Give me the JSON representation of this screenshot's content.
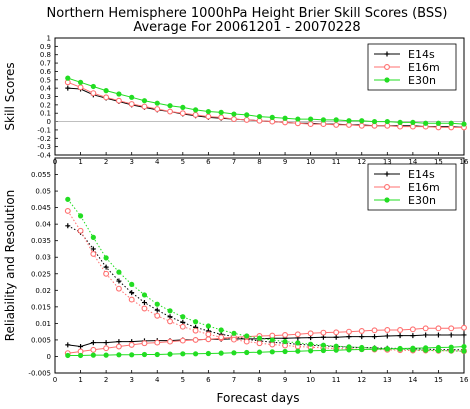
{
  "title_line1": "Northern Hemisphere 1000hPa Height Brier Skill Scores (BSS)",
  "title_line2": "Average For 20061201 - 20070228",
  "xlabel": "Forecast days",
  "colors": {
    "E14s": "#000000",
    "E16m": "#ff6f6f",
    "E30n": "#22dd22"
  },
  "chart_data": [
    {
      "type": "line",
      "ylabel": "Skill Scores",
      "ylim": [
        -0.4,
        1.0
      ],
      "yticks": [
        "-0.4",
        "-0.3",
        "-0.2",
        "-0.1",
        "0",
        "0.1",
        "0.2",
        "0.3",
        "0.4",
        "0.5",
        "0.6",
        "0.7",
        "0.8",
        "0.9",
        "1"
      ],
      "ytick_values": [
        -0.4,
        -0.3,
        -0.2,
        -0.1,
        0,
        0.1,
        0.2,
        0.3,
        0.4,
        0.5,
        0.6,
        0.7,
        0.8,
        0.9,
        1.0
      ],
      "xlim": [
        0,
        16
      ],
      "xticks": [
        "0",
        "1",
        "2",
        "3",
        "4",
        "5",
        "6",
        "7",
        "8",
        "9",
        "10",
        "11",
        "12",
        "13",
        "14",
        "15",
        "16"
      ],
      "xtick_values": [
        0,
        1,
        2,
        3,
        4,
        5,
        6,
        7,
        8,
        9,
        10,
        11,
        12,
        13,
        14,
        15,
        16
      ],
      "legend": "top-right",
      "x": [
        0.5,
        1,
        1.5,
        2,
        2.5,
        3,
        3.5,
        4,
        4.5,
        5,
        5.5,
        6,
        6.5,
        7,
        7.5,
        8,
        8.5,
        9,
        9.5,
        10,
        10.5,
        11,
        11.5,
        12,
        12.5,
        13,
        13.5,
        14,
        14.5,
        15,
        15.5,
        16
      ],
      "series": [
        {
          "name": "E14s",
          "marker": "plus",
          "dash": "solid",
          "values": [
            0.4,
            0.39,
            0.32,
            0.28,
            0.24,
            0.2,
            0.17,
            0.14,
            0.12,
            0.09,
            0.07,
            0.05,
            0.04,
            0.03,
            0.02,
            0.01,
            0.0,
            -0.01,
            -0.02,
            -0.02,
            -0.03,
            -0.03,
            -0.04,
            -0.04,
            -0.05,
            -0.05,
            -0.05,
            -0.05,
            -0.06,
            -0.06,
            -0.06,
            -0.07
          ]
        },
        {
          "name": "E16m",
          "marker": "circle",
          "dash": "solid",
          "values": [
            0.47,
            0.41,
            0.34,
            0.29,
            0.25,
            0.21,
            0.18,
            0.15,
            0.12,
            0.1,
            0.08,
            0.06,
            0.05,
            0.03,
            0.02,
            0.01,
            0.0,
            -0.01,
            -0.02,
            -0.03,
            -0.03,
            -0.04,
            -0.04,
            -0.05,
            -0.05,
            -0.05,
            -0.06,
            -0.06,
            -0.06,
            -0.07,
            -0.07,
            -0.07
          ]
        },
        {
          "name": "E30n",
          "marker": "dot",
          "dash": "solid",
          "values": [
            0.52,
            0.47,
            0.42,
            0.37,
            0.33,
            0.29,
            0.25,
            0.22,
            0.19,
            0.17,
            0.14,
            0.12,
            0.11,
            0.09,
            0.08,
            0.06,
            0.05,
            0.04,
            0.03,
            0.03,
            0.02,
            0.02,
            0.01,
            0.01,
            0.0,
            0.0,
            -0.01,
            -0.01,
            -0.02,
            -0.02,
            -0.02,
            -0.03
          ]
        }
      ]
    },
    {
      "type": "line",
      "ylabel": "Reliability and Resolution",
      "ylim": [
        -0.005,
        0.06
      ],
      "yticks": [
        "-0.005",
        "0",
        "0.005",
        "0.01",
        "0.015",
        "0.02",
        "0.025",
        "0.03",
        "0.035",
        "0.04",
        "0.045",
        "0.05",
        "0.055"
      ],
      "ytick_values": [
        -0.005,
        0,
        0.005,
        0.01,
        0.015,
        0.02,
        0.025,
        0.03,
        0.035,
        0.04,
        0.045,
        0.05,
        0.055
      ],
      "xlim": [
        0,
        16
      ],
      "xticks": [
        "0",
        "1",
        "2",
        "3",
        "4",
        "5",
        "6",
        "7",
        "8",
        "9",
        "10",
        "11",
        "12",
        "13",
        "14",
        "15",
        "16"
      ],
      "xtick_values": [
        0,
        1,
        2,
        3,
        4,
        5,
        6,
        7,
        8,
        9,
        10,
        11,
        12,
        13,
        14,
        15,
        16
      ],
      "legend": "top-right",
      "x": [
        0.5,
        1,
        1.5,
        2,
        2.5,
        3,
        3.5,
        4,
        4.5,
        5,
        5.5,
        6,
        6.5,
        7,
        7.5,
        8,
        8.5,
        9,
        9.5,
        10,
        10.5,
        11,
        11.5,
        12,
        12.5,
        13,
        13.5,
        14,
        14.5,
        15,
        15.5,
        16
      ],
      "series": [
        {
          "name": "E14s",
          "component": "reliability",
          "marker": "plus",
          "dash": "solid",
          "values": [
            0.0035,
            0.003,
            0.0042,
            0.0042,
            0.0045,
            0.0045,
            0.0047,
            0.0048,
            0.0048,
            0.005,
            0.005,
            0.0052,
            0.0052,
            0.0053,
            0.0053,
            0.0053,
            0.0055,
            0.0055,
            0.0056,
            0.0057,
            0.0058,
            0.0058,
            0.006,
            0.006,
            0.006,
            0.0062,
            0.0063,
            0.0063,
            0.0065,
            0.0065,
            0.0065,
            0.0065
          ]
        },
        {
          "name": "E14s",
          "component": "resolution",
          "marker": "plus",
          "dash": "dotted",
          "values": [
            0.0395,
            0.0375,
            0.0325,
            0.027,
            0.0228,
            0.0193,
            0.0163,
            0.014,
            0.012,
            0.0103,
            0.0088,
            0.0077,
            0.0067,
            0.006,
            0.0052,
            0.0047,
            0.0043,
            0.004,
            0.0037,
            0.0034,
            0.0032,
            0.003,
            0.0028,
            0.0027,
            0.0026,
            0.0025,
            0.0024,
            0.0023,
            0.0022,
            0.0021,
            0.002,
            0.002
          ]
        },
        {
          "name": "E16m",
          "component": "reliability",
          "marker": "circle",
          "dash": "solid",
          "values": [
            0.001,
            0.0015,
            0.002,
            0.0025,
            0.003,
            0.0035,
            0.004,
            0.0042,
            0.0045,
            0.0048,
            0.005,
            0.0052,
            0.0055,
            0.0058,
            0.006,
            0.0062,
            0.0063,
            0.0065,
            0.0067,
            0.007,
            0.0072,
            0.0073,
            0.0075,
            0.0077,
            0.0079,
            0.008,
            0.008,
            0.0082,
            0.0085,
            0.0085,
            0.0085,
            0.0087
          ]
        },
        {
          "name": "E16m",
          "component": "resolution",
          "marker": "circle",
          "dash": "dotted",
          "values": [
            0.044,
            0.038,
            0.031,
            0.025,
            0.0205,
            0.0172,
            0.0145,
            0.0123,
            0.0106,
            0.009,
            0.0078,
            0.0067,
            0.0058,
            0.0051,
            0.0045,
            0.004,
            0.0036,
            0.0033,
            0.003,
            0.0028,
            0.0026,
            0.0024,
            0.0023,
            0.0022,
            0.0021,
            0.002,
            0.0019,
            0.0018,
            0.0018,
            0.0017,
            0.0017,
            0.0016
          ]
        },
        {
          "name": "E30n",
          "component": "reliability",
          "marker": "dot",
          "dash": "solid",
          "values": [
            0.0003,
            0.0003,
            0.0004,
            0.0004,
            0.0005,
            0.0005,
            0.0006,
            0.0006,
            0.0007,
            0.0008,
            0.0008,
            0.0009,
            0.001,
            0.0011,
            0.0012,
            0.0013,
            0.0014,
            0.0015,
            0.0016,
            0.0017,
            0.0018,
            0.0019,
            0.002,
            0.0021,
            0.0022,
            0.0023,
            0.0024,
            0.0025,
            0.0026,
            0.0027,
            0.0028,
            0.003
          ]
        },
        {
          "name": "E30n",
          "component": "resolution",
          "marker": "dot",
          "dash": "dotted",
          "values": [
            0.0475,
            0.0425,
            0.036,
            0.0298,
            0.0255,
            0.0218,
            0.0186,
            0.0158,
            0.0138,
            0.012,
            0.0105,
            0.0092,
            0.008,
            0.007,
            0.0062,
            0.0055,
            0.005,
            0.0045,
            0.0041,
            0.0037,
            0.0034,
            0.0031,
            0.0029,
            0.0027,
            0.0025,
            0.0023,
            0.0022,
            0.002,
            0.0019,
            0.0018,
            0.0017,
            0.0016
          ]
        }
      ]
    }
  ]
}
